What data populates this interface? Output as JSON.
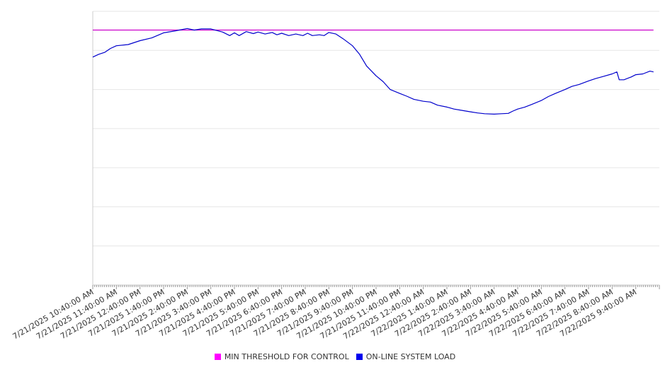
{
  "chart_data": {
    "type": "line",
    "x_categories": [
      "7/21/2025 10:40:00 AM",
      "7/21/2025 11:40:00 AM",
      "7/21/2025 12:40:00 PM",
      "7/21/2025 1:40:00 PM",
      "7/21/2025 2:40:00 PM",
      "7/21/2025 3:40:00 PM",
      "7/21/2025 4:40:00 PM",
      "7/21/2025 5:40:00 PM",
      "7/21/2025 6:40:00 PM",
      "7/21/2025 7:40:00 PM",
      "7/21/2025 8:40:00 PM",
      "7/21/2025 9:40:00 PM",
      "7/21/2025 10:40:00 PM",
      "7/21/2025 11:40:00 PM",
      "7/22/2025 12:40:00 AM",
      "7/22/2025 1:40:00 AM",
      "7/22/2025 2:40:00 AM",
      "7/22/2025 3:40:00 AM",
      "7/22/2025 4:40:00 AM",
      "7/22/2025 5:40:00 AM",
      "7/22/2025 6:40:00 AM",
      "7/22/2025 7:40:00 AM",
      "7/22/2025 8:40:00 AM",
      "7/22/2025 9:40:00 AM"
    ],
    "y_range": [
      0,
      7
    ],
    "y_axis_labels_visible": false,
    "grid": true,
    "legend_position": "bottom",
    "series": [
      {
        "name": "MIN THRESHOLD FOR CONTROL",
        "color": "#cc00cc",
        "points": [
          [
            0,
            6.52
          ],
          [
            23.75,
            6.52
          ]
        ]
      },
      {
        "name": "ON-LINE SYSTEM LOAD",
        "color": "#0000cc",
        "points": [
          [
            0,
            5.83
          ],
          [
            0.25,
            5.9
          ],
          [
            0.5,
            5.95
          ],
          [
            0.75,
            6.05
          ],
          [
            1,
            6.12
          ],
          [
            1.5,
            6.15
          ],
          [
            2,
            6.25
          ],
          [
            2.5,
            6.32
          ],
          [
            3,
            6.45
          ],
          [
            3.5,
            6.5
          ],
          [
            4,
            6.56
          ],
          [
            4.3,
            6.52
          ],
          [
            4.6,
            6.55
          ],
          [
            5,
            6.55
          ],
          [
            5.3,
            6.5
          ],
          [
            5.5,
            6.47
          ],
          [
            5.8,
            6.38
          ],
          [
            6,
            6.45
          ],
          [
            6.2,
            6.38
          ],
          [
            6.5,
            6.48
          ],
          [
            6.8,
            6.43
          ],
          [
            7,
            6.47
          ],
          [
            7.3,
            6.42
          ],
          [
            7.6,
            6.46
          ],
          [
            7.8,
            6.4
          ],
          [
            8,
            6.44
          ],
          [
            8.3,
            6.38
          ],
          [
            8.6,
            6.42
          ],
          [
            8.9,
            6.38
          ],
          [
            9.1,
            6.44
          ],
          [
            9.3,
            6.38
          ],
          [
            9.6,
            6.4
          ],
          [
            9.8,
            6.38
          ],
          [
            10,
            6.46
          ],
          [
            10.3,
            6.42
          ],
          [
            10.6,
            6.3
          ],
          [
            11,
            6.12
          ],
          [
            11.3,
            5.9
          ],
          [
            11.6,
            5.6
          ],
          [
            12,
            5.35
          ],
          [
            12.3,
            5.2
          ],
          [
            12.6,
            5.0
          ],
          [
            13,
            4.9
          ],
          [
            13.3,
            4.83
          ],
          [
            13.6,
            4.75
          ],
          [
            14,
            4.7
          ],
          [
            14.3,
            4.68
          ],
          [
            14.6,
            4.6
          ],
          [
            15,
            4.55
          ],
          [
            15.3,
            4.5
          ],
          [
            15.6,
            4.47
          ],
          [
            16,
            4.43
          ],
          [
            16.3,
            4.4
          ],
          [
            16.6,
            4.38
          ],
          [
            17,
            4.37
          ],
          [
            17.3,
            4.38
          ],
          [
            17.6,
            4.39
          ],
          [
            17.8,
            4.45
          ],
          [
            18,
            4.5
          ],
          [
            18.3,
            4.55
          ],
          [
            18.6,
            4.62
          ],
          [
            19,
            4.72
          ],
          [
            19.3,
            4.82
          ],
          [
            19.6,
            4.9
          ],
          [
            20,
            5.0
          ],
          [
            20.3,
            5.08
          ],
          [
            20.6,
            5.13
          ],
          [
            21,
            5.22
          ],
          [
            21.3,
            5.28
          ],
          [
            21.6,
            5.33
          ],
          [
            22,
            5.4
          ],
          [
            22.2,
            5.45
          ],
          [
            22.3,
            5.25
          ],
          [
            22.5,
            5.25
          ],
          [
            22.8,
            5.32
          ],
          [
            23,
            5.38
          ],
          [
            23.3,
            5.4
          ],
          [
            23.6,
            5.47
          ],
          [
            23.75,
            5.45
          ]
        ]
      }
    ]
  }
}
